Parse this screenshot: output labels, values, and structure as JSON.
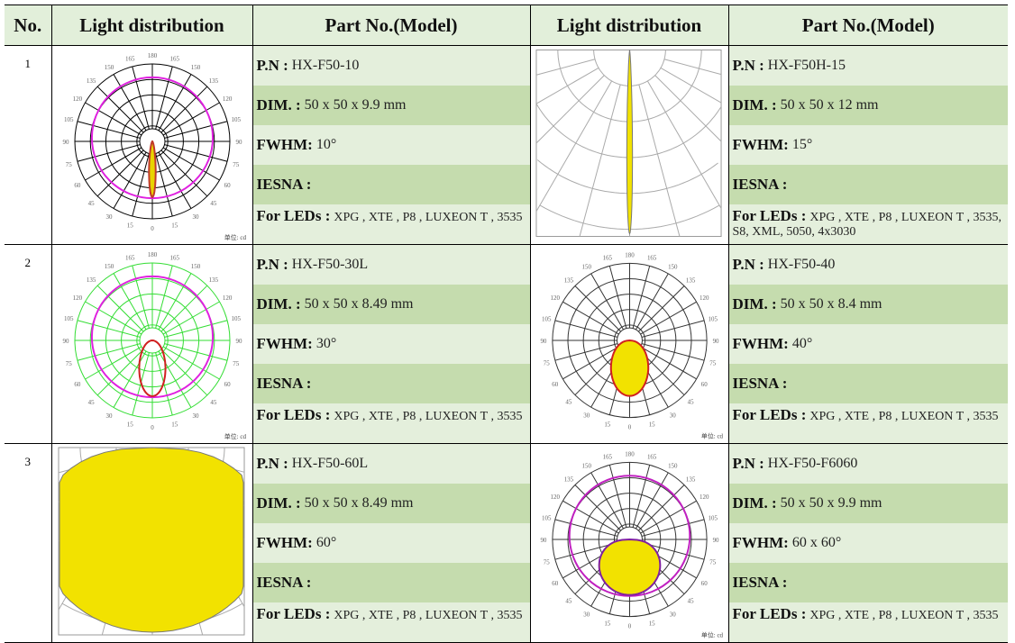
{
  "headers": [
    "No.",
    "Light distribution",
    "Part No.(Model)",
    "Light distribution",
    "Part No.(Model)"
  ],
  "labels": {
    "pn": "P.N :",
    "dim": "DIM. :",
    "fwhm": "FWHM:",
    "iesna": "IESNA :",
    "leds": "For LEDs :"
  },
  "rows": [
    {
      "no": "1",
      "items": [
        {
          "chart": {
            "style": "polar",
            "grid": "#000000",
            "lobe": "#e8d400",
            "outline": "#c0392b",
            "extra": "#e020e0",
            "beam": 10,
            "unit": "单位: cd"
          },
          "pn": "HX-F50-10",
          "dim": "50 x 50 x 9.9 mm",
          "fwhm": "10°",
          "iesna": "",
          "leds": "XPG , XTE , P8 , LUXEON T , 3535"
        },
        {
          "chart": {
            "style": "zoom",
            "beam": 15,
            "lobe": "#f2e200"
          },
          "pn": "HX-F50H-15",
          "dim": "50 x 50 x 12 mm",
          "fwhm": "15°",
          "iesna": "",
          "leds": "XPG , XTE , P8 , LUXEON T , 3535, S8, XML, 5050, 4x3030"
        }
      ]
    },
    {
      "no": "2",
      "items": [
        {
          "chart": {
            "style": "polar",
            "grid": "#33dd33",
            "lobe": "none",
            "outline": "#d02020",
            "extra": "#e020e0",
            "beam": 30,
            "unit": "单位: cd"
          },
          "pn": "HX-F50-30L",
          "dim": "50 x 50 x 8.49 mm",
          "fwhm": "30°",
          "iesna": "",
          "leds": "XPG , XTE , P8 , LUXEON T , 3535"
        },
        {
          "chart": {
            "style": "polar",
            "grid": "#333333",
            "lobe": "#f2e200",
            "outline": "#d02020",
            "extra": "",
            "beam": 40,
            "unit": "单位: cd"
          },
          "pn": "HX-F50-40",
          "dim": "50 x 50 x 8.4 mm",
          "fwhm": "40°",
          "iesna": "",
          "leds": "XPG , XTE , P8 , LUXEON T , 3535"
        }
      ]
    },
    {
      "no": "3",
      "items": [
        {
          "chart": {
            "style": "zoom",
            "beam": 60,
            "lobe": "#f2e200"
          },
          "pn": "HX-F50-60L",
          "dim": "50 x 50 x 8.49 mm",
          "fwhm": "60°",
          "iesna": "",
          "leds": "XPG , XTE , P8 , LUXEON T , 3535"
        },
        {
          "chart": {
            "style": "polar",
            "grid": "#333333",
            "lobe": "#f2e200",
            "outline": "#8020a0",
            "extra": "#c020c0",
            "beam": 60,
            "unit": "单位: cd"
          },
          "pn": "HX-F50-F6060",
          "dim": "50 x 50 x 9.9 mm",
          "fwhm": "60 x 60°",
          "iesna": "",
          "leds": "XPG , XTE , P8 , LUXEON T , 3535"
        }
      ]
    }
  ]
}
